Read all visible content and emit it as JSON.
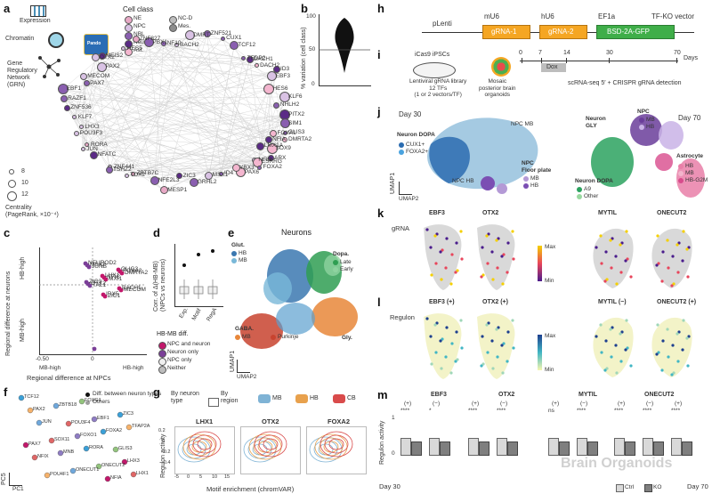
{
  "panels": {
    "a": {
      "label": "a",
      "expression": "Expression",
      "chromatin": "Chromatin",
      "grn": "Gene\nRegulatory\nNetwork\n(GRN)",
      "pando": "Pando",
      "cellclass_title": "Cell class",
      "cellclass": [
        {
          "name": "NE",
          "color": "#e8a9c6"
        },
        {
          "name": "NPC",
          "color": "#d9c2e4"
        },
        {
          "name": "NBL",
          "color": "#8a5fb0"
        },
        {
          "name": "Neuron",
          "color": "#5b2a86"
        },
        {
          "name": "Ast.",
          "color": "#f4b6cf"
        },
        {
          "name": "NC-D",
          "color": "#bdbdbd"
        },
        {
          "name": "Mes.",
          "color": "#8c8c8c"
        }
      ],
      "centrality_sizes": [
        "8",
        "10",
        "12"
      ],
      "centrality_label": "Centrality\n(PageRank, ×10⁻⁴)",
      "genes": [
        "GLIS3",
        "NFIA",
        "SOX9",
        "NFIB",
        "ESRRG",
        "PAX6",
        "YBX3",
        "ID4",
        "MSX1",
        "GRHL2",
        "ZIC3",
        "MESP1",
        "NFE2L3",
        "ZBTB7C",
        "TOX2",
        "ZNF441",
        "TSHZ2",
        "NFATC",
        "JUN",
        "RORA",
        "POU3F3",
        "LHX3",
        "KLF7",
        "ZNF536",
        "RAZF1",
        "EBF1",
        "PAX7",
        "MECOM",
        "PAX2",
        "OTX2",
        "MEIS2",
        "HES5",
        "ZNF827",
        "PBX1",
        "NF10",
        "BACH2",
        "DMRT",
        "ZNF521",
        "CUX1",
        "TCF12",
        "TFDP2",
        "DACH1",
        "DACH2",
        "ID3",
        "EBF3",
        "HES6",
        "KLF6",
        "NHLH2",
        "PITX2",
        "SIM1",
        "FOXA1",
        "DMRTA2",
        "LMX1A",
        "ARX",
        "FOXA2"
      ]
    },
    "b": {
      "label": "b",
      "ylabel": "% variation (cell class)",
      "ticks": [
        "0",
        "50",
        "100"
      ]
    },
    "c": {
      "label": "c",
      "ylabel": "Regional difference at neurons",
      "xlabel": "Regional difference at NPCs",
      "hb_high": "HB-high",
      "mb_high": "MB-high",
      "xticks": [
        "-0.50",
        "0"
      ],
      "genes": [
        "NEUROD2",
        "OLIG3",
        "LHX1",
        "ZIC3",
        "BACH1",
        "IRX5",
        "MSX2",
        "FOXA2",
        "NFIC",
        "OTX2",
        "MECOM",
        "ZIC1",
        "JUNB",
        "DMRTA2",
        "MXI1",
        "TAL1"
      ]
    },
    "d": {
      "label": "d",
      "ylabel": "Corr. of Δ(HB-MB)\n(NPCs vs neurons)",
      "cats": [
        "Exp.",
        "Motif",
        "RegA"
      ],
      "legend_title": "HB-MB diff.",
      "legend": [
        {
          "name": "NPC and neuron",
          "color": "#c2186b"
        },
        {
          "name": "Neuron only",
          "color": "#7b3f98"
        },
        {
          "name": "NPC only",
          "color": "#f0f0f0"
        },
        {
          "name": "Neither",
          "color": "#bdbdbd"
        }
      ]
    },
    "e": {
      "label": "e",
      "title": "Neurons",
      "xlabel": "UMAP2",
      "ylabel": "UMAP1",
      "groups": [
        {
          "name": "Glut.",
          "items": [
            {
              "n": "HB",
              "c": "#3b78b0"
            },
            {
              "n": "MB",
              "c": "#79b8d8"
            }
          ]
        },
        {
          "name": "Dopa.",
          "items": [
            {
              "n": "Late",
              "c": "#2f9e52"
            },
            {
              "n": "Early",
              "c": "#8fd3a0"
            }
          ]
        },
        {
          "name": "GABA.",
          "items": [
            {
              "n": "MB",
              "c": "#e8873a"
            },
            {
              "n": "Purkinje",
              "c": "#c8432f"
            }
          ]
        },
        {
          "name": "Gly.",
          "items": []
        }
      ]
    },
    "f": {
      "label": "f",
      "xlabel": "PC1",
      "ylabel": "PC5",
      "legend": [
        {
          "name": "Diff. between neuron types",
          "color": "#111111"
        },
        {
          "name": "Others",
          "color": "#9e9e9e"
        }
      ],
      "genes": [
        "TCF12",
        "POU3F4",
        "GLIS3",
        "POU4F1",
        "EBF1",
        "PAX7",
        "ONECUT1",
        "ZIC3",
        "SOX11",
        "ONECUT2",
        "PAX2",
        "FOXO1",
        "LHX3",
        "ZBTB18",
        "FOXA2",
        "NFIX",
        "FOXG1",
        "TFAP2A",
        "MNB",
        "NFIA",
        "JUN",
        "RORA",
        "LHX1"
      ]
    },
    "g": {
      "label": "g",
      "by_neuron": "By neuron\ntype",
      "by_region": "By\nregion",
      "regions": [
        {
          "name": "MB",
          "color": "#7fb3d5"
        },
        {
          "name": "HB",
          "color": "#e8a14d"
        },
        {
          "name": "CB",
          "color": "#d94b4b"
        }
      ],
      "plots": [
        "LHX1",
        "OTX2",
        "FOXA2"
      ],
      "ylabel": "Regulon activity",
      "xlabel": "Motif enrichment (chromVAR)",
      "xticks": [
        "-5",
        "0",
        "5",
        "10",
        "15"
      ],
      "yticks": [
        "0.2",
        "0",
        "-0.2",
        "-0.4"
      ]
    },
    "h": {
      "label": "h",
      "plenti": "pLenti",
      "mU6": "mU6",
      "hU6": "hU6",
      "ef1a": "EF1a",
      "tfko": "TF-KO vector",
      "grna1": "gRNA-1",
      "grna2": "gRNA-2",
      "bsd": "BSD-2A-GFP"
    },
    "i": {
      "label": "i",
      "ipsc": "iCas9 iPSCs",
      "lib": "Lentiviral gRNA library\n12 TFs\n(1 or 2 vectors/TF)",
      "organoid": "Mosaic\nposterior brain\norganoids",
      "days": [
        "0",
        "7",
        "14",
        "30",
        "70"
      ],
      "days_label": "Days",
      "dox": "Dox",
      "readout": "scRNA-seq 5′ + CRISPR gRNA detection"
    },
    "j": {
      "label": "j",
      "day30": "Day 30",
      "day70": "Day 70",
      "umap1": "UMAP1",
      "umap2": "UMAP2",
      "l30": [
        {
          "name": "Neuron DOPA",
          "items": [
            {
              "n": "CUX1+",
              "c": "#2b6cb0"
            },
            {
              "n": "FOXA2+",
              "c": "#4aa3df"
            }
          ]
        },
        {
          "name": "NPC MB",
          "items": []
        },
        {
          "name": "NPC HB",
          "items": []
        },
        {
          "name": "NPC\nFloor plate",
          "items": [
            {
              "n": "MB",
              "c": "#b49ad6"
            },
            {
              "n": "HB",
              "c": "#7b4fb3"
            }
          ]
        }
      ],
      "l70": [
        {
          "name": "Neuron\nGLY",
          "items": []
        },
        {
          "name": "NPC",
          "items": [
            {
              "n": "MB",
              "c": "#6a3d9a"
            },
            {
              "n": "HB",
              "c": "#c9b3e6"
            }
          ]
        },
        {
          "name": "Astrocyte",
          "items": [
            {
              "n": "HB",
              "c": "#e97fa8"
            },
            {
              "n": "MB",
              "c": "#f2b5cc"
            },
            {
              "n": "HB-G2M",
              "c": "#d84b8c"
            }
          ]
        },
        {
          "name": "Neuron DOPA",
          "items": [
            {
              "n": "A9",
              "c": "#2ca25f"
            },
            {
              "n": "Other",
              "c": "#99d8a0"
            }
          ]
        }
      ]
    },
    "k": {
      "label": "k",
      "row": "gRNA",
      "genes": [
        "EBF3",
        "OTX2",
        "MYTIL",
        "ONECUT2"
      ],
      "max": "Max",
      "min": "Min"
    },
    "l": {
      "label": "l",
      "row": "Regulon",
      "genes": [
        "EBF3 (+)",
        "OTX2 (+)",
        "MYTIL (−)",
        "ONECUT2 (+)"
      ],
      "max": "Max",
      "min": "Min"
    },
    "m": {
      "label": "m",
      "ylabel": "Regulon activity",
      "day30": "Day 30",
      "day70": "Day 70",
      "groups": [
        {
          "gene": "EBF3",
          "signs": [
            "(+)",
            "(−)"
          ],
          "stars": [
            "****",
            "*"
          ]
        },
        {
          "gene": "OTX2",
          "signs": [
            "(+)",
            "(−)"
          ],
          "stars": [
            "****",
            "****"
          ]
        },
        {
          "gene": "MYTIL",
          "signs": [
            "(+)",
            "(−)"
          ],
          "stars": [
            "ns",
            "****"
          ]
        },
        {
          "gene": "ONECUT2",
          "signs": [
            "(+)",
            "(−)",
            "(+)"
          ],
          "stars": [
            "****",
            "****",
            "****"
          ]
        }
      ],
      "legend": [
        {
          "name": "Ctrl",
          "color": "#d9d9d9"
        },
        {
          "name": "KO",
          "color": "#7f7f7f"
        }
      ],
      "yticks": [
        "1",
        "0"
      ]
    }
  },
  "watermark": "Brain Organoids"
}
